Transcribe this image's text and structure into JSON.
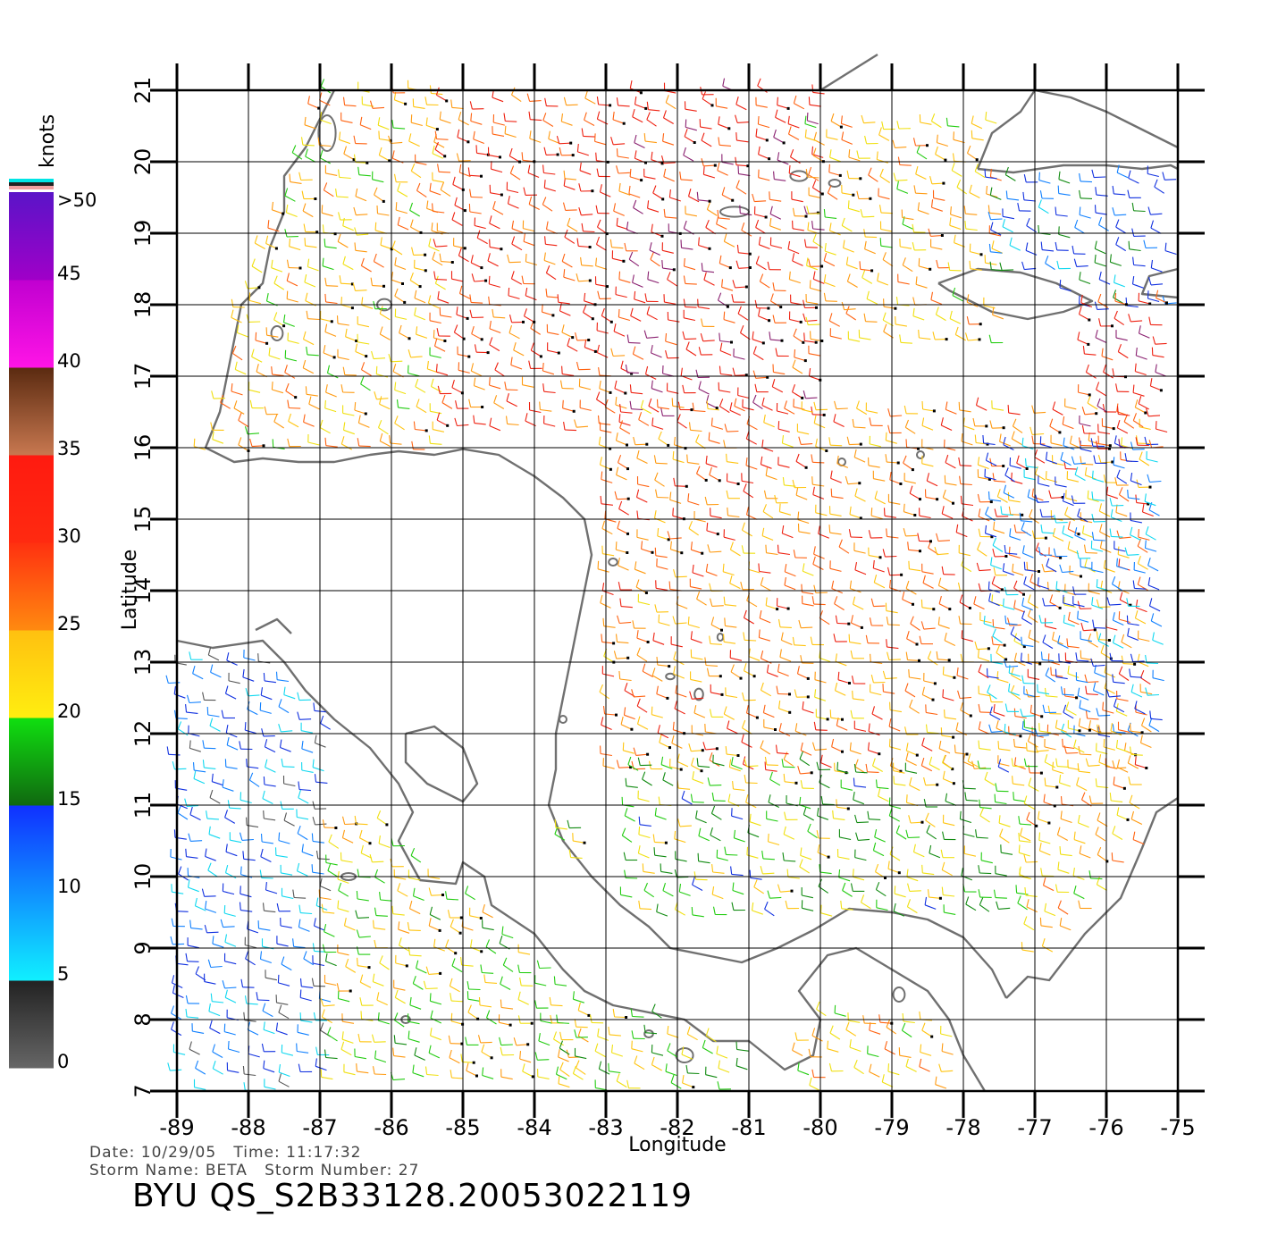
{
  "colorbar": {
    "unit": "knots",
    "labels": [
      ">50",
      "45",
      "40",
      "35",
      "30",
      "25",
      "20",
      "15",
      "10",
      "5",
      "0"
    ],
    "colors": {
      "top_stripe": [
        "#00e5e5",
        "#222222",
        "#f0a0a0"
      ],
      "purple": "#5a14c8",
      "magenta": "#ff14e6",
      "brown": "#5a2a10",
      "red": "#ff1a10",
      "orange": "#ff8a10",
      "yellow": "#ffee10",
      "green": "#10e010",
      "darkgreen": "#106810",
      "blue": "#1030ff",
      "cyan": "#10f0ff",
      "gray": "#666666"
    }
  },
  "map": {
    "x_label": "Longitude",
    "y_label": "Latitude",
    "lon_range": [
      -89,
      -75
    ],
    "lat_range": [
      7,
      21
    ],
    "lon_ticks": [
      "-89",
      "-88",
      "-87",
      "-86",
      "-85",
      "-84",
      "-83",
      "-82",
      "-81",
      "-80",
      "-79",
      "-78",
      "-77",
      "-76",
      "-75"
    ],
    "lat_ticks": [
      "7",
      "8",
      "9",
      "10",
      "11",
      "12",
      "13",
      "14",
      "15",
      "16",
      "17",
      "18",
      "19",
      "20",
      "21"
    ],
    "grid": true,
    "coastline_color": "#707070",
    "wind_regions": [
      {
        "lon": [
          -88.8,
          -85.2
        ],
        "lat": [
          16.0,
          21.0
        ],
        "speed": 24
      },
      {
        "lon": [
          -85.2,
          -82.5
        ],
        "lat": [
          16.3,
          21.0
        ],
        "speed": 30
      },
      {
        "lon": [
          -82.5,
          -80.0
        ],
        "lat": [
          16.5,
          21.0
        ],
        "speed": 32
      },
      {
        "lon": [
          -80.0,
          -77.5
        ],
        "lat": [
          17.5,
          20.5
        ],
        "speed": 24
      },
      {
        "lon": [
          -77.5,
          -75.0
        ],
        "lat": [
          18.0,
          20.0
        ],
        "speed": 12
      },
      {
        "lon": [
          -82.9,
          -75.2
        ],
        "lat": [
          11.5,
          16.5
        ],
        "speed": 27
      },
      {
        "lon": [
          -77.5,
          -75.2
        ],
        "lat": [
          12.0,
          16.0
        ],
        "speed": 10
      },
      {
        "lon": [
          -76.2,
          -75.0
        ],
        "lat": [
          16.0,
          18.2
        ],
        "speed": 33
      },
      {
        "lon": [
          -82.6,
          -77.0
        ],
        "lat": [
          9.5,
          11.6
        ],
        "speed": 19
      },
      {
        "lon": [
          -77.0,
          -75.3
        ],
        "lat": [
          9.0,
          12.0
        ],
        "speed": 24
      },
      {
        "lon": [
          -88.9,
          -86.7
        ],
        "lat": [
          7.0,
          13.0
        ],
        "speed": 9
      },
      {
        "lon": [
          -86.8,
          -83.2
        ],
        "lat": [
          7.2,
          10.8
        ],
        "speed": 22
      },
      {
        "lon": [
          -83.5,
          -81.0
        ],
        "lat": [
          7.0,
          8.2
        ],
        "speed": 20
      },
      {
        "lon": [
          -80.2,
          -78.0
        ],
        "lat": [
          7.0,
          8.0
        ],
        "speed": 24
      }
    ]
  },
  "footer": {
    "date_label": "Date:",
    "date": "10/29/05",
    "time_label": "Time:",
    "time": "11:17:32",
    "storm_name_label": "Storm Name:",
    "storm_name": "BETA",
    "storm_number_label": "Storm Number:",
    "storm_number": "27",
    "product_id": "BYU QS_S2B33128.20053022119"
  }
}
